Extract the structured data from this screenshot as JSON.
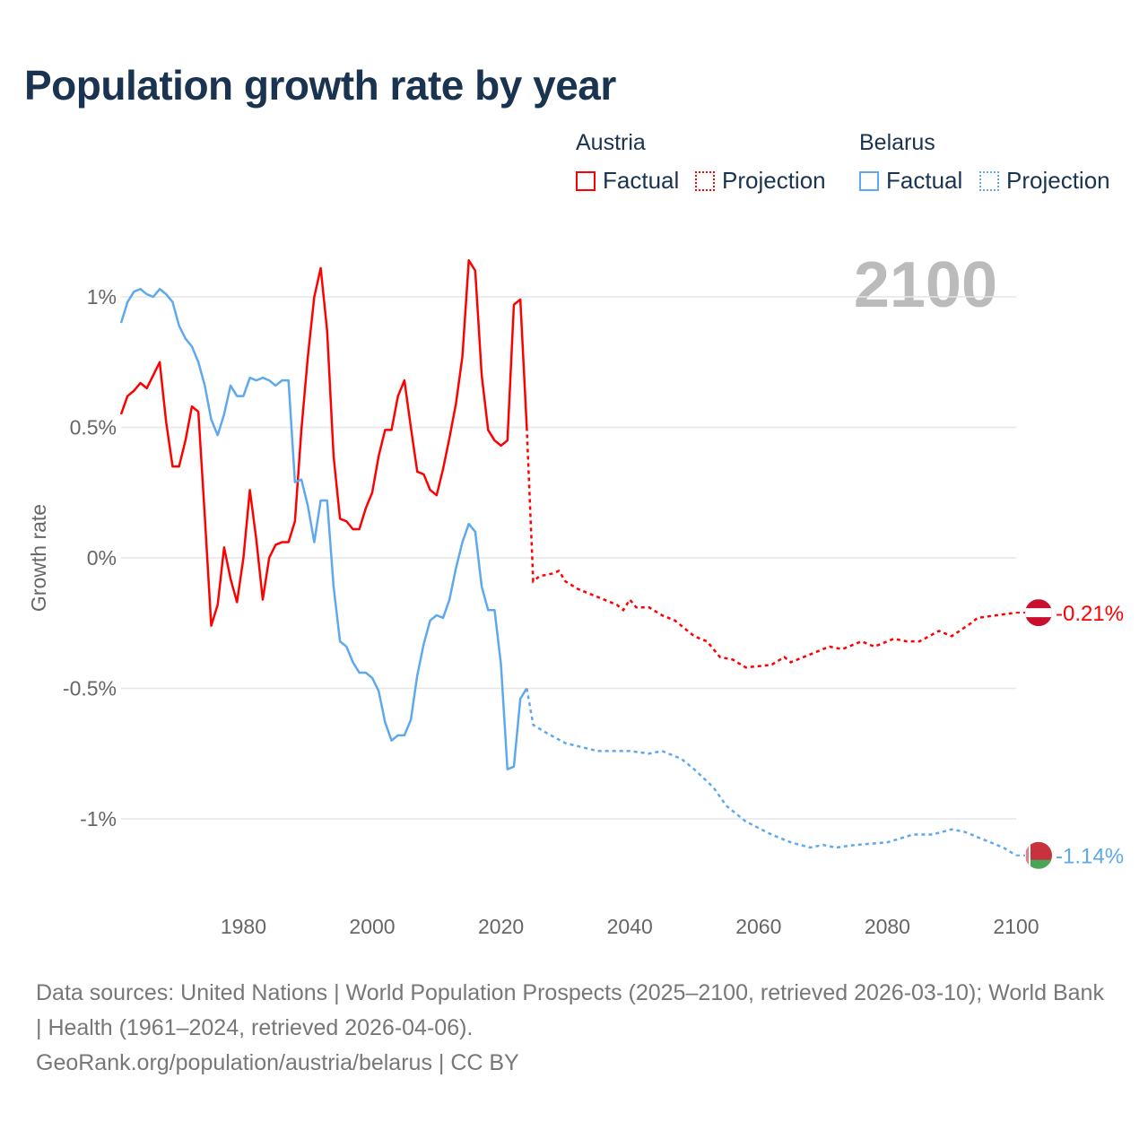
{
  "title": "Population growth rate by year",
  "legend": {
    "groups": [
      {
        "name": "Austria",
        "factual_label": "Factual",
        "projection_label": "Projection",
        "color": "#ff0000"
      },
      {
        "name": "Belarus",
        "factual_label": "Factual",
        "projection_label": "Projection",
        "color": "#5ea8ee"
      }
    ]
  },
  "year_display": "2100",
  "footer": {
    "sources": "Data sources: United Nations | World Population Prospects (2025–2100, retrieved 2026-03-10); World Bank | Health (1961–2024, retrieved 2026-04-06).",
    "link": "GeoRank.org/population/austria/belarus | CC BY"
  },
  "chart_data": {
    "type": "line",
    "title": "Population growth rate by year",
    "xlabel": "",
    "ylabel": "Growth rate",
    "xlim": [
      1961,
      2100
    ],
    "ylim": [
      -1.3,
      1.15
    ],
    "x_ticks": [
      1980,
      2000,
      2020,
      2040,
      2060,
      2080,
      2100
    ],
    "x_tick_labels": [
      "1980",
      "2000",
      "2020",
      "2040",
      "2060",
      "2080",
      "2100"
    ],
    "y_ticks": [
      1,
      0.5,
      0,
      -0.5,
      -1
    ],
    "y_tick_labels": [
      "1%",
      "0.5%",
      "0%",
      "-0.5%",
      "-1%"
    ],
    "grid": true,
    "series": [
      {
        "name": "Austria",
        "color": "#ff0000",
        "factual_start": 1961,
        "factual": [
          0.55,
          0.62,
          0.64,
          0.67,
          0.65,
          0.7,
          0.75,
          0.52,
          0.35,
          0.35,
          0.45,
          0.58,
          0.56,
          0.16,
          -0.26,
          -0.18,
          0.04,
          -0.08,
          -0.17,
          0.0,
          0.26,
          0.07,
          -0.16,
          0.0,
          0.05,
          0.06,
          0.06,
          0.14,
          0.49,
          0.77,
          1.0,
          1.11,
          0.87,
          0.39,
          0.15,
          0.14,
          0.11,
          0.11,
          0.19,
          0.25,
          0.39,
          0.49,
          0.49,
          0.62,
          0.68,
          0.5,
          0.33,
          0.32,
          0.26,
          0.24,
          0.34,
          0.46,
          0.59,
          0.77,
          1.14,
          1.1,
          0.7,
          0.49,
          0.45,
          0.43,
          0.45,
          0.97,
          0.99,
          0.5
        ],
        "projection": [
          [
            2024,
            0.5
          ],
          [
            2025,
            -0.09
          ],
          [
            2026,
            -0.07
          ],
          [
            2028,
            -0.06
          ],
          [
            2029,
            -0.05
          ],
          [
            2030,
            -0.09
          ],
          [
            2032,
            -0.12
          ],
          [
            2035,
            -0.15
          ],
          [
            2038,
            -0.18
          ],
          [
            2039,
            -0.2
          ],
          [
            2040,
            -0.16
          ],
          [
            2041,
            -0.19
          ],
          [
            2043,
            -0.19
          ],
          [
            2045,
            -0.22
          ],
          [
            2047,
            -0.24
          ],
          [
            2050,
            -0.3
          ],
          [
            2052,
            -0.32
          ],
          [
            2054,
            -0.38
          ],
          [
            2056,
            -0.39
          ],
          [
            2058,
            -0.42
          ],
          [
            2062,
            -0.41
          ],
          [
            2064,
            -0.38
          ],
          [
            2065,
            -0.4
          ],
          [
            2068,
            -0.37
          ],
          [
            2071,
            -0.34
          ],
          [
            2073,
            -0.35
          ],
          [
            2075,
            -0.33
          ],
          [
            2076,
            -0.32
          ],
          [
            2078,
            -0.34
          ],
          [
            2081,
            -0.31
          ],
          [
            2083,
            -0.32
          ],
          [
            2085,
            -0.32
          ],
          [
            2088,
            -0.28
          ],
          [
            2090,
            -0.3
          ],
          [
            2093,
            -0.25
          ],
          [
            2094,
            -0.23
          ],
          [
            2097,
            -0.22
          ],
          [
            2100,
            -0.21
          ]
        ],
        "end_label": "-0.21%"
      },
      {
        "name": "Belarus",
        "color": "#5ea8ee",
        "factual_start": 1961,
        "factual": [
          0.9,
          0.98,
          1.02,
          1.03,
          1.01,
          1.0,
          1.03,
          1.01,
          0.98,
          0.89,
          0.84,
          0.81,
          0.75,
          0.66,
          0.53,
          0.47,
          0.55,
          0.66,
          0.62,
          0.62,
          0.69,
          0.68,
          0.69,
          0.68,
          0.66,
          0.68,
          0.68,
          0.29,
          0.3,
          0.2,
          0.06,
          0.22,
          0.22,
          -0.11,
          -0.32,
          -0.34,
          -0.4,
          -0.44,
          -0.44,
          -0.46,
          -0.51,
          -0.63,
          -0.7,
          -0.68,
          -0.68,
          -0.62,
          -0.45,
          -0.33,
          -0.24,
          -0.22,
          -0.23,
          -0.16,
          -0.04,
          0.06,
          0.13,
          0.1,
          -0.11,
          -0.2,
          -0.2,
          -0.41,
          -0.81,
          -0.8,
          -0.54,
          -0.5
        ],
        "projection": [
          [
            2024,
            -0.5
          ],
          [
            2025,
            -0.64
          ],
          [
            2027,
            -0.67
          ],
          [
            2030,
            -0.71
          ],
          [
            2035,
            -0.74
          ],
          [
            2040,
            -0.74
          ],
          [
            2043,
            -0.75
          ],
          [
            2045,
            -0.74
          ],
          [
            2048,
            -0.77
          ],
          [
            2050,
            -0.81
          ],
          [
            2053,
            -0.88
          ],
          [
            2055,
            -0.95
          ],
          [
            2058,
            -1.01
          ],
          [
            2062,
            -1.06
          ],
          [
            2065,
            -1.09
          ],
          [
            2068,
            -1.11
          ],
          [
            2070,
            -1.1
          ],
          [
            2072,
            -1.11
          ],
          [
            2075,
            -1.1
          ],
          [
            2080,
            -1.09
          ],
          [
            2084,
            -1.06
          ],
          [
            2087,
            -1.06
          ],
          [
            2090,
            -1.04
          ],
          [
            2092,
            -1.05
          ],
          [
            2095,
            -1.08
          ],
          [
            2098,
            -1.11
          ],
          [
            2100,
            -1.14
          ]
        ],
        "end_label": "-1.14%"
      }
    ]
  }
}
